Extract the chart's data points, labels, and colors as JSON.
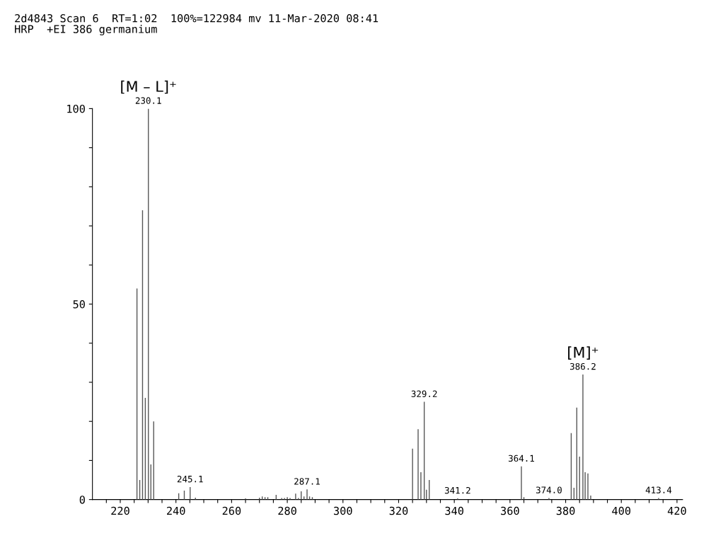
{
  "chart_data": {
    "type": "bar",
    "title": "2d4843 Scan 6  RT=1:02  100%=122984 mv 11-Mar-2020 08:41",
    "subtitle": "HRP  +EI 386 germanium",
    "x": [
      226,
      227,
      228,
      229,
      230.1,
      231,
      232,
      241,
      243,
      245.1,
      247,
      265,
      270,
      271,
      272,
      273,
      276,
      278,
      279,
      280,
      281,
      283,
      284,
      285,
      286,
      287.1,
      288,
      289,
      325,
      327,
      328,
      329.2,
      330,
      331,
      341.2,
      364.1,
      365,
      374.0,
      382,
      383,
      384,
      385,
      386.2,
      387,
      388,
      389,
      413.4
    ],
    "values": [
      54,
      5,
      74,
      26,
      100,
      9,
      20,
      1.6,
      2.3,
      3.2,
      0.5,
      0.3,
      0.5,
      0.8,
      0.6,
      0.6,
      1.2,
      0.4,
      0.4,
      0.6,
      0.4,
      1.5,
      0.4,
      2.1,
      0.8,
      2.6,
      0.8,
      0.6,
      13,
      18,
      7,
      25,
      2.5,
      5,
      0.3,
      8.5,
      0.6,
      0.4,
      17,
      3,
      23.5,
      11,
      32,
      7,
      6.7,
      1,
      0.4
    ],
    "color": "#555555",
    "annotations": [
      {
        "text": "230.1",
        "x": 230.1,
        "y": 100
      },
      {
        "text": "245.1",
        "x": 245.1,
        "y": 3.2
      },
      {
        "text": "287.1",
        "x": 287.1,
        "y": 2.6
      },
      {
        "text": "329.2",
        "x": 329.2,
        "y": 25
      },
      {
        "text": "341.2",
        "x": 341.2,
        "y": 0.3
      },
      {
        "text": "364.1",
        "x": 364.1,
        "y": 8.5
      },
      {
        "text": "374.0",
        "x": 374.0,
        "y": 0.4
      },
      {
        "text": "386.2",
        "x": 386.2,
        "y": 32
      },
      {
        "text": "413.4",
        "x": 413.4,
        "y": 0.4
      },
      {
        "text": "[M – L]⁺",
        "x": 230.1,
        "y": 100
      },
      {
        "text": "[M]⁺",
        "x": 386.2,
        "y": 32
      }
    ],
    "xlim": [
      210,
      422
    ],
    "ylim": [
      0,
      100
    ],
    "xticks": [
      {
        "value": 215,
        "label": null
      },
      220,
      {
        "value": 225,
        "label": null
      },
      {
        "value": 230,
        "label": null
      },
      {
        "value": 235,
        "label": null
      },
      240,
      {
        "value": 245,
        "label": null
      },
      {
        "value": 250,
        "label": null
      },
      {
        "value": 255,
        "label": null
      },
      260,
      {
        "value": 265,
        "label": null
      },
      {
        "value": 270,
        "label": null
      },
      {
        "value": 275,
        "label": null
      },
      280,
      {
        "value": 285,
        "label": null
      },
      {
        "value": 290,
        "label": null
      },
      {
        "value": 295,
        "label": null
      },
      300,
      {
        "value": 305,
        "label": null
      },
      {
        "value": 310,
        "label": null
      },
      {
        "value": 315,
        "label": null
      },
      320,
      {
        "value": 325,
        "label": null
      },
      {
        "value": 330,
        "label": null
      },
      {
        "value": 335,
        "label": null
      },
      340,
      {
        "value": 345,
        "label": null
      },
      {
        "value": 350,
        "label": null
      },
      {
        "value": 355,
        "label": null
      },
      360,
      {
        "value": 365,
        "label": null
      },
      {
        "value": 370,
        "label": null
      },
      {
        "value": 375,
        "label": null
      },
      380,
      {
        "value": 385,
        "label": null
      },
      {
        "value": 390,
        "label": null
      },
      {
        "value": 395,
        "label": null
      },
      400,
      {
        "value": 405,
        "label": null
      },
      {
        "value": 410,
        "label": null
      },
      {
        "value": 415,
        "label": null
      },
      420
    ],
    "yticks": [
      0,
      {
        "value": 10,
        "label": null
      },
      {
        "value": 20,
        "label": null
      },
      {
        "value": 30,
        "label": null
      },
      {
        "value": 40,
        "label": null
      },
      50,
      {
        "value": 60,
        "label": null
      },
      {
        "value": 70,
        "label": null
      },
      {
        "value": 80,
        "label": null
      },
      {
        "value": 90,
        "label": null
      },
      100
    ],
    "grid": false
  }
}
